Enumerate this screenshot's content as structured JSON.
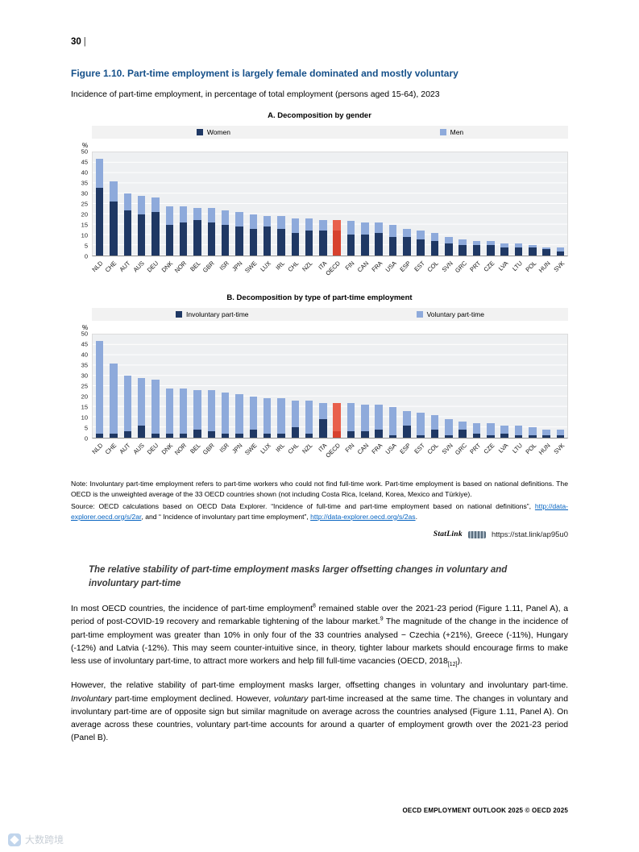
{
  "page": {
    "number": "30",
    "pipe": "|",
    "footer": "OECD EMPLOYMENT OUTLOOK 2025 © OECD 2025",
    "watermark": "大数跨境"
  },
  "figure": {
    "title": "Figure 1.10. Part-time employment is largely female dominated and mostly voluntary",
    "subtitle": "Incidence of part-time employment, in percentage of total employment (persons aged 15-64), 2023"
  },
  "chart_data": [
    {
      "type": "bar",
      "stacked": true,
      "title": "A. Decomposition by gender",
      "ylabel": "%",
      "ylim": [
        0,
        50
      ],
      "ytick_step": 5,
      "grid": true,
      "legend_position": "top",
      "categories": [
        "NLD",
        "CHE",
        "AUT",
        "AUS",
        "DEU",
        "DNK",
        "NOR",
        "BEL",
        "GBR",
        "ISR",
        "JPN",
        "SWE",
        "LUX",
        "IRL",
        "CHL",
        "NZL",
        "ITA",
        "OECD",
        "FIN",
        "CAN",
        "FRA",
        "USA",
        "ESP",
        "EST",
        "COL",
        "SVN",
        "GRC",
        "PRT",
        "CZE",
        "LVA",
        "LTU",
        "POL",
        "HUN",
        "SVK"
      ],
      "series": [
        {
          "name": "Women",
          "color": "#1f3864",
          "values": [
            33,
            26,
            22,
            20,
            21,
            15,
            16,
            17,
            16,
            15,
            14,
            13,
            14,
            13,
            11,
            12,
            12,
            12,
            10,
            10,
            11,
            9,
            9,
            8,
            7,
            6,
            5,
            5,
            5,
            4,
            4,
            4,
            3,
            2
          ]
        },
        {
          "name": "Men",
          "color": "#8eaadb",
          "values": [
            14,
            10,
            8,
            9,
            7,
            9,
            8,
            6,
            7,
            7,
            7,
            7,
            5,
            6,
            7,
            6,
            5,
            5,
            7,
            6,
            5,
            6,
            4,
            4,
            4,
            3,
            3,
            2,
            2,
            2,
            2,
            1,
            1,
            2
          ]
        }
      ],
      "highlight": {
        "category": "OECD",
        "colors": [
          "#d7412e",
          "#e8604c"
        ]
      }
    },
    {
      "type": "bar",
      "stacked": true,
      "title": "B. Decomposition by type of part-time employment",
      "ylabel": "%",
      "ylim": [
        0,
        50
      ],
      "ytick_step": 5,
      "grid": true,
      "legend_position": "top",
      "categories": [
        "NLD",
        "CHE",
        "AUT",
        "AUS",
        "DEU",
        "DNK",
        "NOR",
        "BEL",
        "GBR",
        "ISR",
        "JPN",
        "SWE",
        "LUX",
        "IRL",
        "CHL",
        "NZL",
        "ITA",
        "OECD",
        "FIN",
        "CAN",
        "FRA",
        "USA",
        "ESP",
        "EST",
        "COL",
        "SVN",
        "GRC",
        "PRT",
        "CZE",
        "LVA",
        "LTU",
        "POL",
        "HUN",
        "SVK"
      ],
      "series": [
        {
          "name": "Involuntary part-time",
          "color": "#1f3864",
          "values": [
            2,
            2,
            3,
            6,
            2,
            2,
            2,
            4,
            3,
            2,
            2,
            4,
            2,
            2,
            5,
            2,
            9,
            3,
            3,
            3,
            4,
            1,
            6,
            1,
            4,
            1,
            4,
            2,
            1,
            2,
            1,
            1,
            1,
            1
          ]
        },
        {
          "name": "Voluntary part-time",
          "color": "#8eaadb",
          "values": [
            45,
            34,
            27,
            23,
            26,
            22,
            22,
            19,
            20,
            20,
            19,
            16,
            17,
            17,
            13,
            16,
            8,
            14,
            14,
            13,
            12,
            14,
            7,
            11,
            7,
            8,
            4,
            5,
            6,
            4,
            5,
            4,
            3,
            3
          ]
        }
      ],
      "highlight": {
        "category": "OECD",
        "colors": [
          "#d7412e",
          "#e8604c"
        ]
      }
    }
  ],
  "note": {
    "segments": [
      {
        "t": "Note: Involuntary part-time employment refers to part-time workers who could not find full-time work. Part-time employment is based on national definitions. The OECD is the unweighted average of the 33 OECD countries shown (not including Costa Rica, Iceland, Korea, Mexico and Türkiye)."
      }
    ]
  },
  "source": {
    "segments": [
      {
        "t": "Source: OECD calculations based on OECD Data Explorer. “Incidence of full-time and part-time employment based on national definitions”, "
      },
      {
        "t": "http://data-explorer.oecd.org/s/2ar",
        "style": "link"
      },
      {
        "t": ", and “ Incidence of involuntary part time employment”, "
      },
      {
        "t": "http://data-explorer.oecd.org/s/2as",
        "style": "link"
      },
      {
        "t": "."
      }
    ]
  },
  "statlink": {
    "label": "StatLink",
    "url": "https://stat.link/ap95u0"
  },
  "body": {
    "heading": "The relative stability of part-time employment masks larger offsetting changes in voluntary and involuntary part-time",
    "paragraphs": [
      {
        "segments": [
          {
            "t": "In most OECD countries, the incidence of part-time employment"
          },
          {
            "t": "8",
            "style": "sup"
          },
          {
            "t": " remained stable over the 2021-23 period (Figure 1.11, Panel A), a period of post-COVID-19 recovery and remarkable tightening of the labour market."
          },
          {
            "t": "9",
            "style": "sup"
          },
          {
            "t": " The magnitude of the change in the incidence of part-time employment was greater than 10% in only four of the 33 countries analysed − Czechia (+21%), Greece (-11%), Hungary (-12%) and Latvia (-12%). This may seem counter-intuitive since, in theory, tighter labour markets should encourage firms to make less use of involuntary part-time, to attract more workers and help fill full-time vacancies (OECD, 2018"
          },
          {
            "t": "[12]",
            "style": "sub"
          },
          {
            "t": ")."
          }
        ]
      },
      {
        "segments": [
          {
            "t": "However, the relative stability of part-time employment masks larger, offsetting changes in voluntary and involuntary part-time. "
          },
          {
            "t": "Involuntary",
            "style": "italic"
          },
          {
            "t": " part-time employment declined. However, "
          },
          {
            "t": "voluntary",
            "style": "italic"
          },
          {
            "t": " part-time increased at the same time. The changes in voluntary and involuntary part-time are of opposite sign but similar magnitude on average across the countries analysed (Figure 1.11, Panel A). On average across these countries, voluntary part-time accounts for around a quarter of employment growth over the 2021-23 period (Panel B)."
          }
        ]
      }
    ]
  }
}
